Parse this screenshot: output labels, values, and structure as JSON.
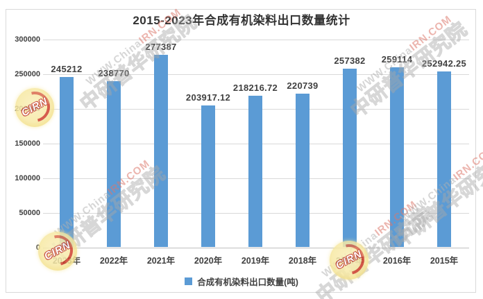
{
  "chart_data": {
    "type": "bar",
    "title": "2015-2023年合成有机染料出口数量统计",
    "categories": [
      "2023年",
      "2022年",
      "2021年",
      "2020年",
      "2019年",
      "2018年",
      "2017年",
      "2016年",
      "2015年"
    ],
    "values": [
      245212,
      238770,
      277387,
      203917.12,
      218216.72,
      220739,
      257382,
      259114,
      252942.25
    ],
    "value_labels": [
      "245212",
      "238770",
      "277387",
      "203917.12",
      "218216.72",
      "220739",
      "257382",
      "259114",
      "252942.25"
    ],
    "xlabel": "",
    "ylabel": "",
    "ylim": [
      0,
      300000
    ],
    "yticks": [
      300000,
      250000,
      200000,
      150000,
      100000,
      50000,
      0
    ],
    "ytick_labels": [
      "300000",
      "250000",
      "200000",
      "150000",
      "100000",
      "50000",
      "0"
    ],
    "grid": true,
    "legend": {
      "position": "bottom",
      "label": "合成有机染料出口数量(吨)"
    },
    "bar_color": "#5B9BD5"
  },
  "watermark": {
    "url_text": "WWW.ChinaIRN.COM",
    "brand_text": "中研普华研究院",
    "logo_text": "CIRN",
    "url_gray_color": "#AFAFAF",
    "url_red_color": "#DB7669",
    "brand_outline_color": "#A5A5A5",
    "logo_red": "#D0402E",
    "logo_yellow": "#F7E9A4"
  },
  "colors": {
    "bar": "#5B9BD5",
    "gridline": "#D9D9D9",
    "axis_line": "#BFBFBF",
    "label_text": "#404040",
    "title_text": "#333333",
    "frame_border": "#D9D9D9",
    "background": "#FFFFFF"
  }
}
